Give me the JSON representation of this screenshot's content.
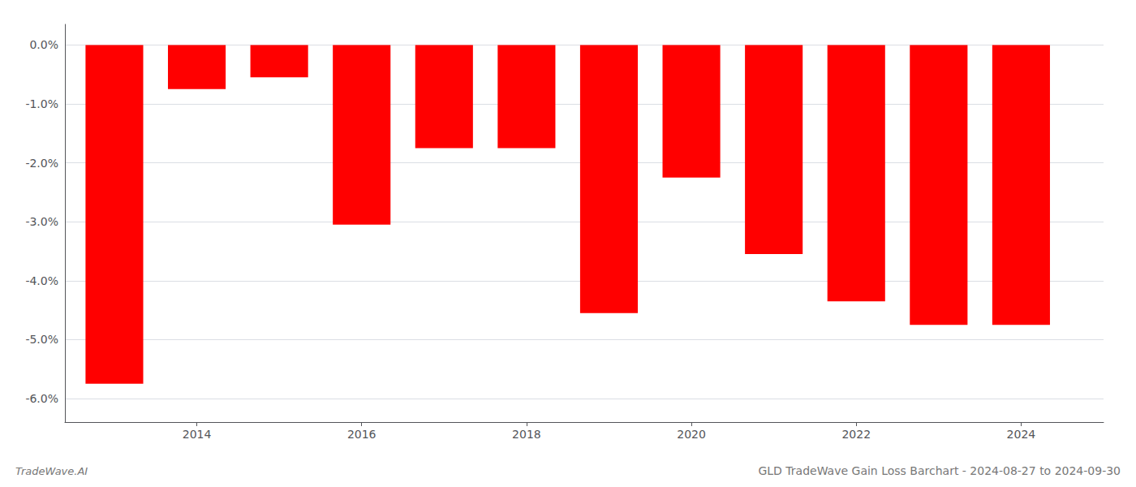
{
  "chart_data": {
    "type": "bar",
    "title": "GLD TradeWave Gain Loss Barchart - 2024-08-27 to 2024-09-30",
    "annotations": [
      "TradeWave.AI"
    ],
    "x": [
      2013,
      2014,
      2015,
      2016,
      2017,
      2018,
      2019,
      2020,
      2021,
      2022,
      2023,
      2024
    ],
    "values": [
      -5.75,
      -0.75,
      -0.55,
      -3.05,
      -1.75,
      -1.75,
      -4.55,
      -2.25,
      -3.55,
      -4.35,
      -4.75,
      -4.75
    ],
    "color": "#ff0000",
    "xlim": [
      2012.4,
      2025.0
    ],
    "xticks": [
      2014,
      2016,
      2018,
      2020,
      2022,
      2024
    ],
    "ylim": [
      -6.4,
      0.35
    ],
    "yticks": [
      {
        "value": 0.0,
        "label": "0.0%"
      },
      {
        "value": -1.0,
        "label": "-1.0%"
      },
      {
        "value": -2.0,
        "label": "-2.0%"
      },
      {
        "value": -3.0,
        "label": "-3.0%"
      },
      {
        "value": -4.0,
        "label": "-4.0%"
      },
      {
        "value": -5.0,
        "label": "-5.0%"
      },
      {
        "value": -6.0,
        "label": "-6.0%"
      }
    ],
    "grid": true
  }
}
